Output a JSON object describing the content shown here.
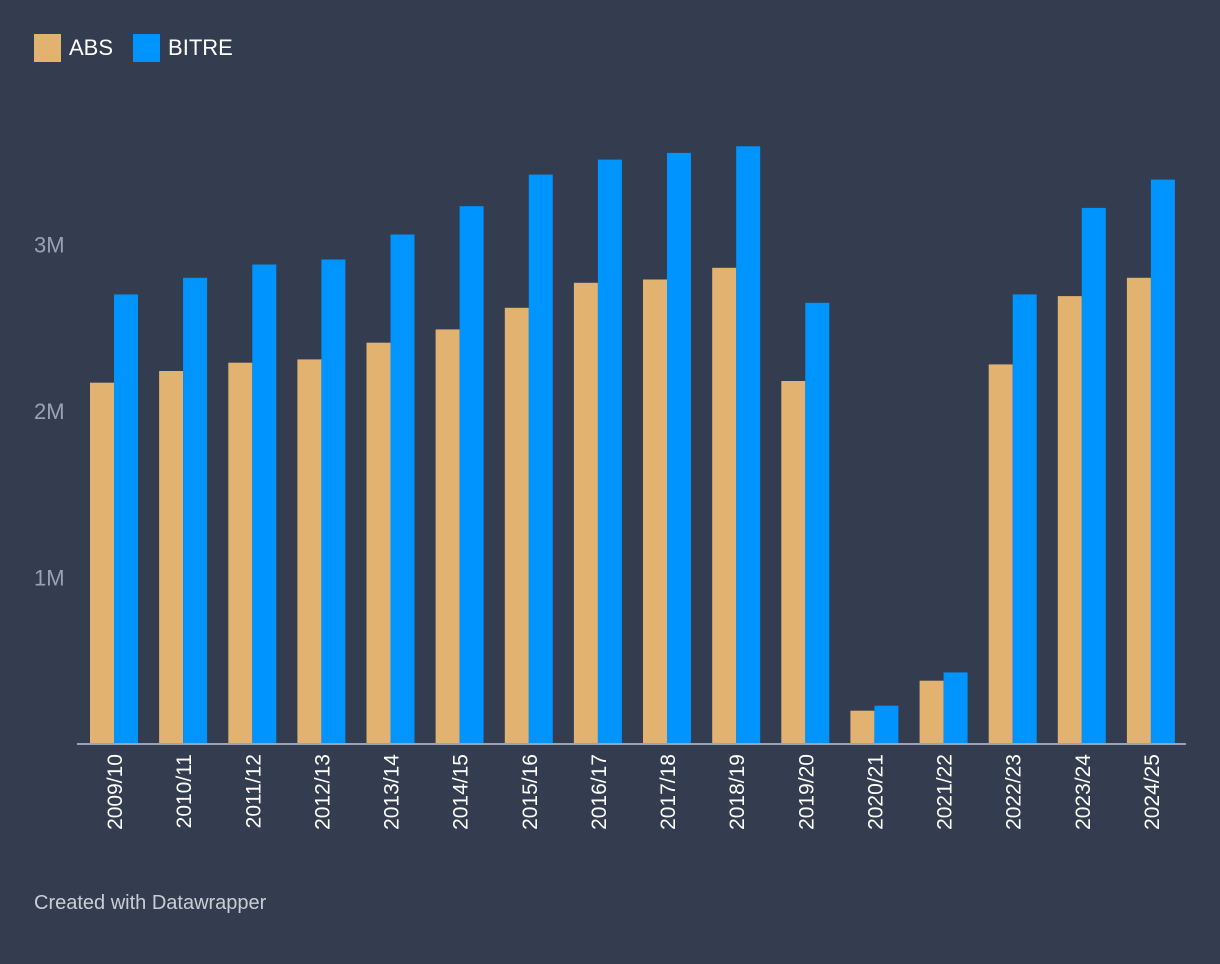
{
  "chart_data": {
    "type": "bar",
    "categories": [
      "2009/10",
      "2010/11",
      "2011/12",
      "2012/13",
      "2013/14",
      "2014/15",
      "2015/16",
      "2016/17",
      "2017/18",
      "2018/19",
      "2019/20",
      "2020/21",
      "2021/22",
      "2022/23",
      "2023/24",
      "2024/25"
    ],
    "series": [
      {
        "name": "ABS",
        "color": "#e2b271",
        "values": [
          2170000,
          2240000,
          2290000,
          2310000,
          2410000,
          2490000,
          2620000,
          2770000,
          2790000,
          2860000,
          2180000,
          200000,
          380000,
          2280000,
          2690000,
          2800000
        ]
      },
      {
        "name": "BITRE",
        "color": "#0094ff",
        "values": [
          2700000,
          2800000,
          2880000,
          2910000,
          3060000,
          3230000,
          3420000,
          3510000,
          3550000,
          3590000,
          2650000,
          230000,
          430000,
          2700000,
          3220000,
          3390000
        ]
      }
    ],
    "y_ticks": [
      {
        "value": 1000000,
        "label": "1M"
      },
      {
        "value": 2000000,
        "label": "2M"
      },
      {
        "value": 3000000,
        "label": "3M"
      }
    ],
    "ylim": [
      0,
      4000000
    ],
    "title": "",
    "xlabel": "",
    "ylabel": "",
    "legend_position": "top-left",
    "background": "#333d4f",
    "axis_color": "#9aa3b1",
    "tick_label_color": "#9aa3b1",
    "category_label_color": "#ffffff"
  },
  "footer": {
    "credit": "Created with Datawrapper"
  }
}
